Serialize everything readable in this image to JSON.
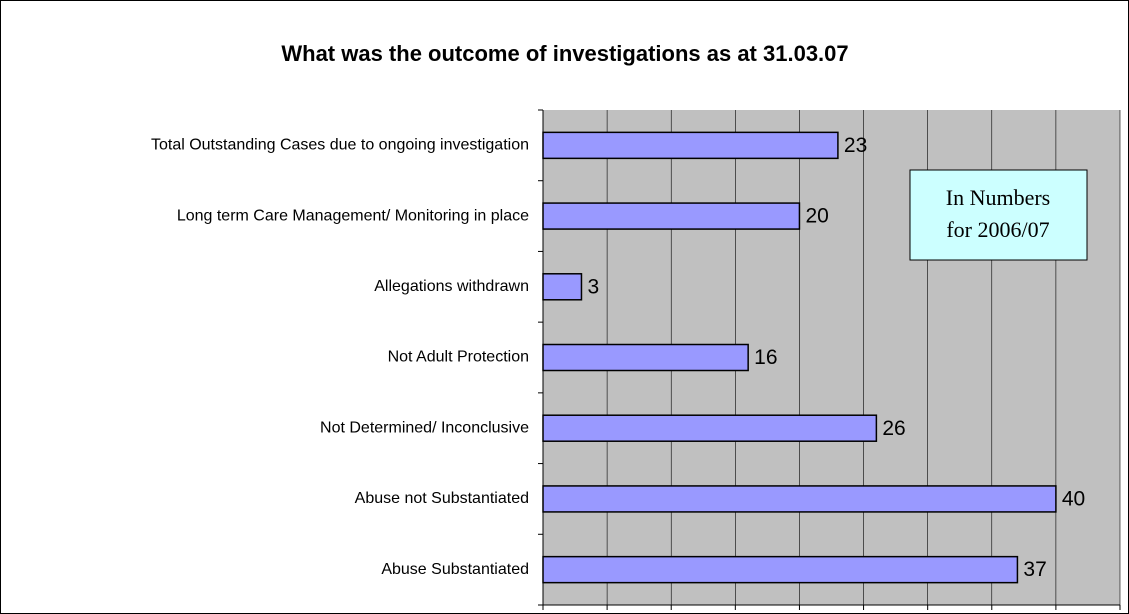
{
  "chart_data": {
    "type": "bar",
    "orientation": "horizontal",
    "title": "What was the outcome of investigations as at 31.03.07",
    "categories": [
      "Total Outstanding Cases due to ongoing investigation",
      "Long term Care Management/ Monitoring in place",
      "Allegations withdrawn",
      "Not Adult Protection",
      "Not Determined/ Inconclusive",
      "Abuse not Substantiated",
      "Abuse Substantiated"
    ],
    "values": [
      23,
      20,
      3,
      16,
      26,
      40,
      37
    ],
    "color": "#9999ff",
    "xlim": [
      0,
      45
    ],
    "xticks": [
      0,
      5,
      10,
      15,
      20,
      25,
      30,
      35,
      40,
      45
    ],
    "grid": true,
    "annotation": [
      "In Numbers",
      "for 2006/07"
    ]
  }
}
